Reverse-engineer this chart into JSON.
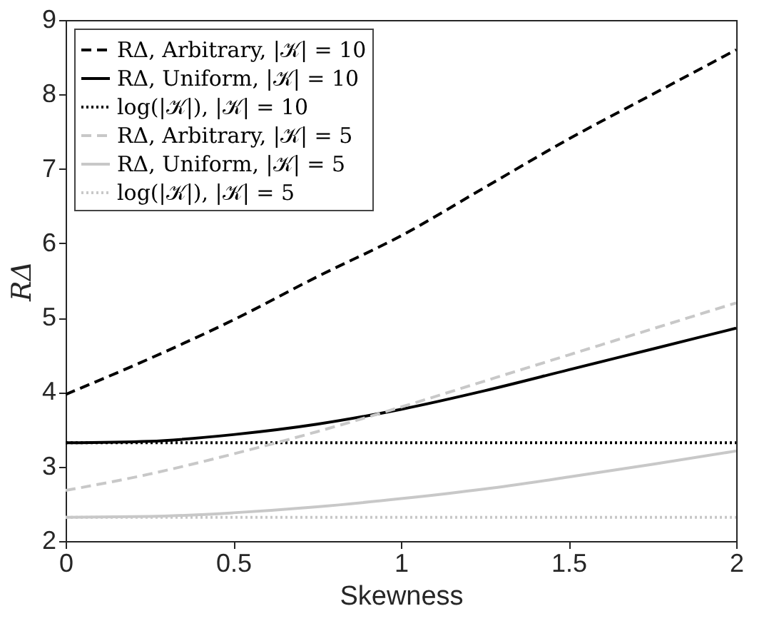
{
  "chart_data": {
    "type": "line",
    "xlabel": "Skewness",
    "ylabel": "RΔ",
    "x": [
      0,
      0.25,
      0.5,
      0.75,
      1,
      1.25,
      1.5,
      1.75,
      2
    ],
    "series": [
      {
        "name": "RΔ, Arbitrary, |𝒦| = 10",
        "color": "#000000",
        "line_style": "dashed",
        "values": [
          3.97,
          4.45,
          4.97,
          5.55,
          6.1,
          6.75,
          7.4,
          8.0,
          8.6
        ]
      },
      {
        "name": "RΔ, Uniform, |𝒦| = 10",
        "color": "#000000",
        "line_style": "solid",
        "values": [
          3.32,
          3.34,
          3.43,
          3.57,
          3.77,
          4.02,
          4.3,
          4.58,
          4.86
        ]
      },
      {
        "name": "log(|𝒦|), |𝒦| = 10",
        "color": "#000000",
        "line_style": "dotted",
        "values": [
          3.32,
          3.32,
          3.32,
          3.32,
          3.32,
          3.32,
          3.32,
          3.32,
          3.32
        ]
      },
      {
        "name": "RΔ, Arbitrary, |𝒦| = 5",
        "color": "#c8c8c8",
        "line_style": "dashed",
        "values": [
          2.68,
          2.9,
          3.17,
          3.47,
          3.8,
          4.15,
          4.5,
          4.85,
          5.2
        ]
      },
      {
        "name": "RΔ, Uniform, |𝒦| = 5",
        "color": "#c8c8c8",
        "line_style": "solid",
        "values": [
          2.32,
          2.33,
          2.38,
          2.46,
          2.57,
          2.7,
          2.86,
          3.03,
          3.21
        ]
      },
      {
        "name": "log(|𝒦|), |𝒦| = 5",
        "color": "#c8c8c8",
        "line_style": "dotted",
        "values": [
          2.32,
          2.32,
          2.32,
          2.32,
          2.32,
          2.32,
          2.32,
          2.32,
          2.32
        ]
      }
    ],
    "xlim": [
      0,
      2
    ],
    "xticks": [
      0,
      0.5,
      1,
      1.5,
      2
    ],
    "ylim": [
      2,
      9
    ],
    "yticks": [
      2,
      3,
      4,
      5,
      6,
      7,
      8,
      9
    ],
    "grid": false,
    "legend": "top left"
  }
}
